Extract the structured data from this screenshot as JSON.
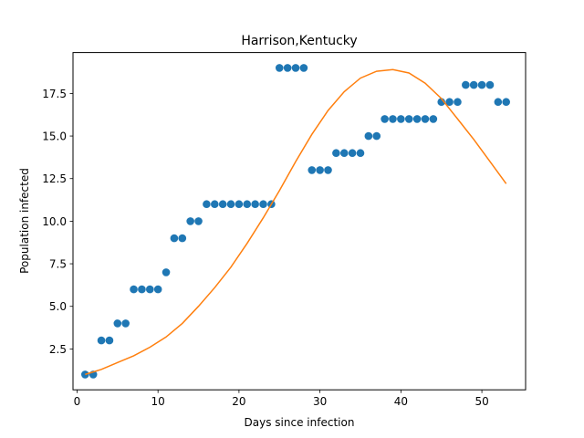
{
  "chart_data": {
    "type": "scatter",
    "title": "Harrison,Kentucky",
    "xlabel": "Days since infection",
    "ylabel": "Population infected",
    "xlim": [
      -0.5,
      55.4
    ],
    "ylim": [
      0.1,
      19.9
    ],
    "xticks": [
      0,
      10,
      20,
      30,
      40,
      50
    ],
    "xtick_labels": [
      "0",
      "10",
      "20",
      "30",
      "40",
      "50"
    ],
    "yticks": [
      2.5,
      5.0,
      7.5,
      10.0,
      12.5,
      15.0,
      17.5
    ],
    "ytick_labels": [
      "2.5",
      "5.0",
      "7.5",
      "10.0",
      "12.5",
      "15.0",
      "17.5"
    ],
    "grid": false,
    "series": [
      {
        "kind": "scatter",
        "color": "#1f77b4",
        "x": [
          1,
          2,
          3,
          4,
          5,
          6,
          7,
          8,
          9,
          10,
          11,
          12,
          13,
          14,
          15,
          16,
          17,
          18,
          19,
          20,
          21,
          22,
          23,
          24,
          25,
          26,
          27,
          28,
          29,
          30,
          31,
          32,
          33,
          34,
          35,
          36,
          37,
          38,
          39,
          40,
          41,
          42,
          43,
          44,
          45,
          46,
          47,
          48,
          49,
          50,
          51,
          52,
          53
        ],
        "y": [
          1,
          1,
          3,
          3,
          4,
          4,
          6,
          6,
          6,
          6,
          7,
          9,
          9,
          10,
          10,
          11,
          11,
          11,
          11,
          11,
          11,
          11,
          11,
          11,
          19,
          19,
          19,
          19,
          13,
          13,
          13,
          14,
          14,
          14,
          14,
          15,
          15,
          16,
          16,
          16,
          16,
          16,
          16,
          16,
          17,
          17,
          17,
          18,
          18,
          18,
          18,
          17,
          17
        ]
      },
      {
        "kind": "line",
        "color": "#ff7f0e",
        "x": [
          1,
          3,
          5,
          7,
          9,
          11,
          13,
          15,
          17,
          19,
          21,
          23,
          25,
          27,
          29,
          31,
          33,
          35,
          37,
          39,
          41,
          43,
          45,
          47,
          49,
          51,
          53
        ],
        "y": [
          1.0,
          1.3,
          1.7,
          2.1,
          2.6,
          3.2,
          4.0,
          5.0,
          6.1,
          7.3,
          8.7,
          10.2,
          11.8,
          13.5,
          15.1,
          16.5,
          17.6,
          18.4,
          18.8,
          18.9,
          18.7,
          18.1,
          17.2,
          16.0,
          14.8,
          13.5,
          12.2
        ]
      }
    ]
  }
}
